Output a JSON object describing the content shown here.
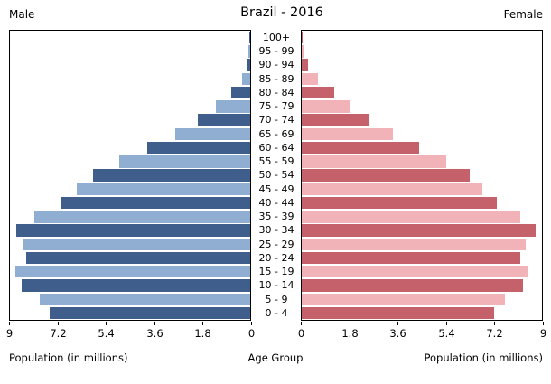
{
  "header": {
    "title": "Brazil - 2016",
    "left_label": "Male",
    "right_label": "Female"
  },
  "axis": {
    "left_xlabel": "Population (in millions)",
    "center_label": "Age Group",
    "right_xlabel": "Population (in millions)",
    "left_ticks": [
      "9",
      "7.2",
      "5.4",
      "3.6",
      "1.8",
      "0"
    ],
    "right_ticks": [
      "0",
      "1.8",
      "3.6",
      "5.4",
      "7.2",
      "9"
    ],
    "max_value": 9
  },
  "colors": {
    "male_dark": "#405e8b",
    "male_light": "#90aed1",
    "female_dark": "#c5616a",
    "female_light": "#f2b3b8",
    "axis": "#000000",
    "background": "#ffffff"
  },
  "chart_data": {
    "type": "bar",
    "subtype": "population-pyramid",
    "title": "Brazil - 2016",
    "units": "millions",
    "xlim": [
      0,
      9
    ],
    "xlabel_left": "Population (in millions)",
    "xlabel_right": "Population (in millions)",
    "center_axis_label": "Age Group",
    "categories_top_to_bottom": [
      "100+",
      "95 - 99",
      "90 - 94",
      "85 - 89",
      "80 - 84",
      "75 - 79",
      "70 - 74",
      "65 - 69",
      "60 - 64",
      "55 - 59",
      "50 - 54",
      "45 - 49",
      "40 - 44",
      "35 - 39",
      "30 - 34",
      "25 - 29",
      "20 - 24",
      "15 - 19",
      "10 - 14",
      "5 - 9",
      "0 - 4"
    ],
    "series": [
      {
        "name": "Male",
        "side": "left",
        "values": [
          0.02,
          0.06,
          0.15,
          0.3,
          0.72,
          1.3,
          1.95,
          2.8,
          3.85,
          4.9,
          5.9,
          6.5,
          7.1,
          8.1,
          8.75,
          8.5,
          8.4,
          8.8,
          8.55,
          7.9,
          7.5
        ]
      },
      {
        "name": "Female",
        "side": "right",
        "values": [
          0.04,
          0.1,
          0.23,
          0.6,
          1.2,
          1.8,
          2.5,
          3.4,
          4.4,
          5.4,
          6.3,
          6.75,
          7.3,
          8.2,
          8.75,
          8.4,
          8.2,
          8.5,
          8.3,
          7.6,
          7.2
        ]
      }
    ],
    "bar_color_pattern": "alternating dark/light per row, dark on even rows from top"
  }
}
